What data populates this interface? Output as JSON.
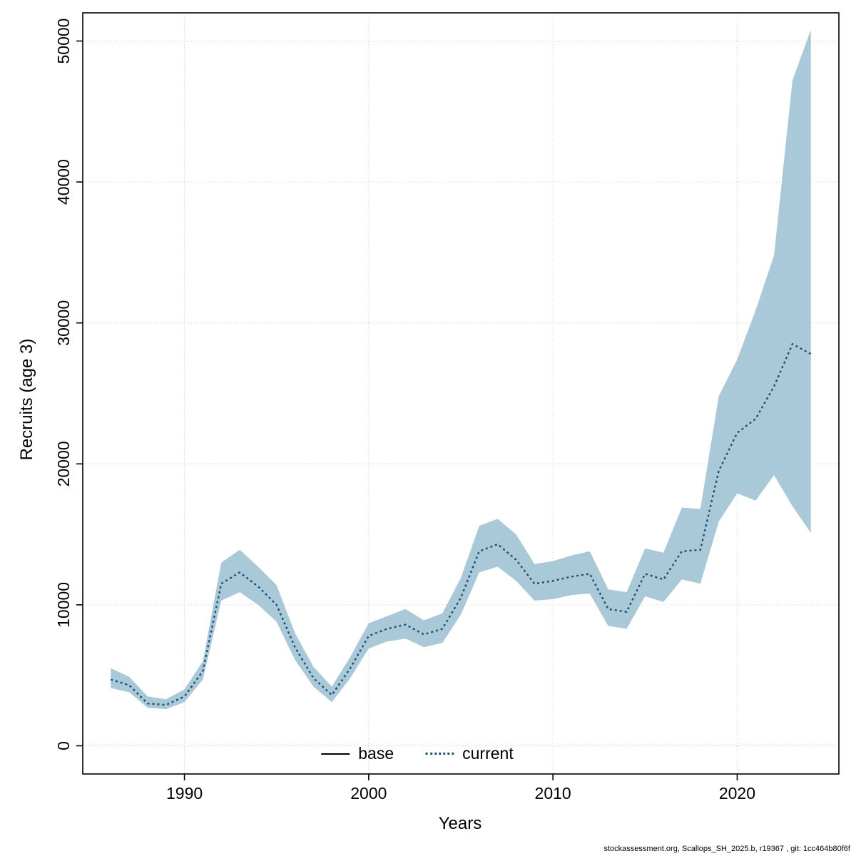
{
  "figure": {
    "ylabel": "Recruits (age 3)",
    "xlabel": "Years",
    "footer": "stockassessment.org, Scallops_SH_2025.b, r19367 , git: 1cc464b80f6f"
  },
  "legend": {
    "items": [
      {
        "label": "base",
        "style": "solid",
        "color": "#000000"
      },
      {
        "label": "current",
        "style": "dotted",
        "color": "#1d4e6e"
      }
    ]
  },
  "chart_data": {
    "type": "line",
    "title": "",
    "xlabel": "Years",
    "ylabel": "Recruits (age 3)",
    "xlim": [
      1986,
      2024
    ],
    "ylim": [
      0,
      50000
    ],
    "x_ticks": [
      1990,
      2000,
      2010,
      2020
    ],
    "y_ticks": [
      0,
      10000,
      20000,
      30000,
      40000,
      50000
    ],
    "grid": true,
    "legend_position": "bottom-center-inside",
    "band_color": "#a9c8d8",
    "line_color": "#1d4e6e",
    "years": [
      1986,
      1987,
      1988,
      1989,
      1990,
      1991,
      1992,
      1993,
      1994,
      1995,
      1996,
      1997,
      1998,
      1999,
      2000,
      2001,
      2002,
      2003,
      2004,
      2005,
      2006,
      2007,
      2008,
      2009,
      2010,
      2011,
      2012,
      2013,
      2014,
      2015,
      2016,
      2017,
      2018,
      2019,
      2020,
      2021,
      2022,
      2023,
      2024
    ],
    "series": [
      {
        "name": "current",
        "style": "dotted",
        "color": "#1d4e6e",
        "values": [
          4700,
          4300,
          3000,
          2900,
          3500,
          5300,
          11500,
          12300,
          11300,
          10000,
          7000,
          4800,
          3600,
          5500,
          7800,
          8300,
          8600,
          7900,
          8300,
          10500,
          13800,
          14300,
          13200,
          11500,
          11700,
          12000,
          12200,
          9700,
          9500,
          12200,
          11800,
          13800,
          13900,
          19500,
          22200,
          23200,
          25500,
          28500,
          27800
        ]
      }
    ],
    "band": {
      "name": "confidence-interval",
      "lower": [
        4100,
        3800,
        2700,
        2600,
        3100,
        4700,
        10300,
        10900,
        10000,
        8800,
        6100,
        4200,
        3100,
        4800,
        6900,
        7400,
        7600,
        7000,
        7300,
        9300,
        12300,
        12700,
        11700,
        10300,
        10400,
        10700,
        10800,
        8500,
        8300,
        10600,
        10200,
        11800,
        11500,
        15900,
        17900,
        17400,
        19200,
        17000,
        15100
      ],
      "upper": [
        5500,
        4900,
        3500,
        3300,
        4000,
        6000,
        13000,
        13900,
        12700,
        11400,
        8000,
        5600,
        4200,
        6300,
        8700,
        9200,
        9700,
        8900,
        9400,
        11900,
        15600,
        16100,
        15000,
        12900,
        13100,
        13500,
        13800,
        11100,
        10900,
        14000,
        13700,
        16900,
        16800,
        24800,
        27400,
        30900,
        34800,
        47200,
        50800
      ]
    }
  }
}
